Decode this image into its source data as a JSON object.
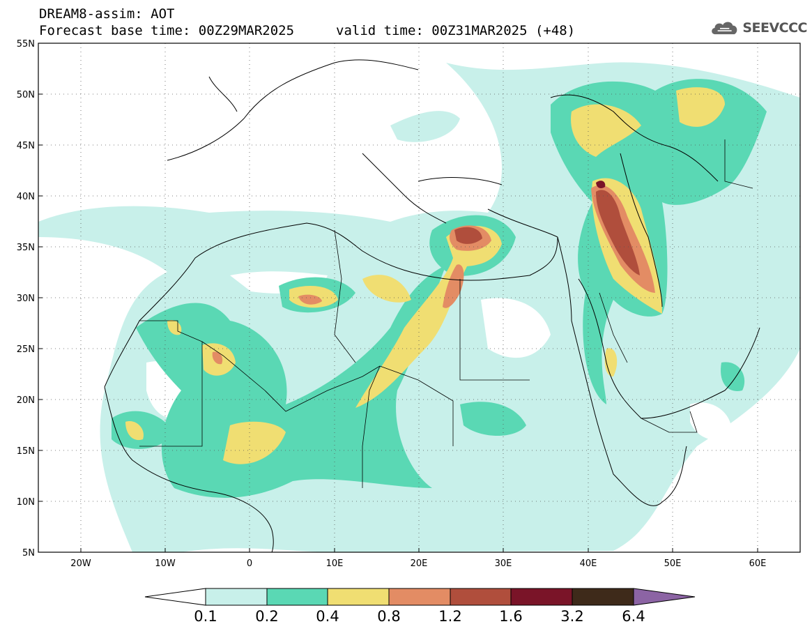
{
  "header": {
    "title": "DREAM8-assim: AOT",
    "base_time": "Forecast base time: 00Z29MAR2025",
    "valid_time": "valid time: 00Z31MAR2025 (+48)",
    "logo_text": "SEEVCCC"
  },
  "axes": {
    "lat_labels": [
      "55N",
      "50N",
      "45N",
      "40N",
      "35N",
      "30N",
      "25N",
      "20N",
      "15N",
      "10N",
      "5N"
    ],
    "lon_labels": [
      "20W",
      "10W",
      "0",
      "10E",
      "20E",
      "30E",
      "40E",
      "50E",
      "60E"
    ]
  },
  "colorbar": {
    "labels": [
      "0.1",
      "0.2",
      "0.4",
      "0.8",
      "1.2",
      "1.6",
      "3.2",
      "6.4"
    ],
    "colors": [
      "#ffffff",
      "#c8f0ea",
      "#5ad8b4",
      "#f0de72",
      "#e38c64",
      "#b04e3c",
      "#7a1428",
      "#3e2a1a",
      "#8c64a4"
    ]
  },
  "legend_colors": {
    "c1": "#c8f0ea",
    "c2": "#5ad8b4",
    "c3": "#f0de72",
    "c4": "#e38c64",
    "c5": "#b04e3c",
    "c6": "#7a1428"
  }
}
